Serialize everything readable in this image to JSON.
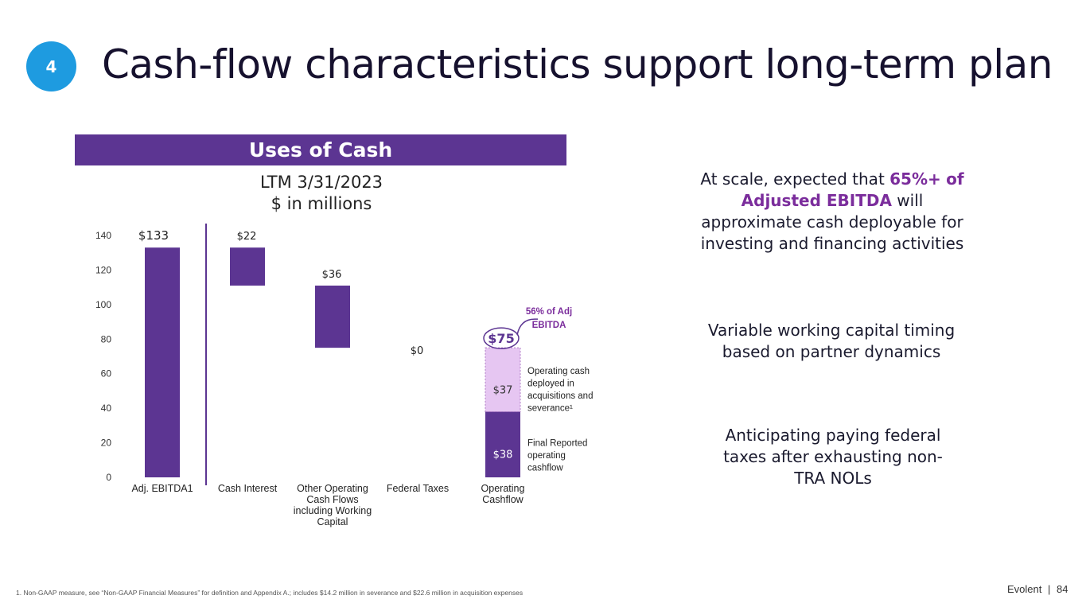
{
  "slide": {
    "badge_number": "4",
    "title": "Cash-flow characteristics support long-term plan",
    "uses_header": "Uses of Cash",
    "subtitle_line1": "LTM 3/31/2023",
    "subtitle_line2": "$ in millions",
    "footnote": "1.   Non-GAAP measure, see “Non-GAAP Financial Measures” for definition and Appendix A.; includes $14.2 million in severance and $22.6 million in acquisition expenses",
    "footer_brand": "Evolent",
    "footer_sep": "|",
    "footer_page": "84"
  },
  "right_panel": {
    "p1_pre": "At scale, expected that ",
    "p1_highlight1": "65%+",
    "p1_highlight2": "of Adjusted EBITDA",
    "p1_post": " will approximate cash deployable for investing and financing activities",
    "p2": "Variable working capital timing based on partner dynamics",
    "p3": "Anticipating paying federal taxes after exhausting non-TRA NOLs"
  },
  "colors": {
    "badge": "#1e9be0",
    "primary_purple": "#5c3592",
    "light_purple": "#e6c6f2",
    "accent_purple": "#7b2d9c"
  },
  "chart_data": {
    "type": "bar",
    "subtype": "waterfall",
    "ylim": [
      0,
      140
    ],
    "yticks": [
      "0",
      "20",
      "40",
      "60",
      "80",
      "100",
      "120",
      "140"
    ],
    "categories": [
      [
        "Adj. EBITDA1"
      ],
      [
        "Cash Interest"
      ],
      [
        "Other Operating",
        "Cash Flows",
        "including Working",
        "Capital"
      ],
      [
        "Federal Taxes"
      ],
      [
        "Operating",
        "Cashflow"
      ]
    ],
    "bars": [
      {
        "label": "$133",
        "start": 0,
        "end": 133
      },
      {
        "label": "$22",
        "start": 111,
        "end": 133
      },
      {
        "label": "$36",
        "start": 75,
        "end": 111
      },
      {
        "label": "$0",
        "start": 75,
        "end": 75
      },
      {
        "label": "",
        "start": 0,
        "end": 75
      }
    ],
    "stack": [
      {
        "label": "$38",
        "value": 38,
        "note": [
          "Final Reported",
          "operating",
          "cashflow"
        ]
      },
      {
        "label": "$37",
        "value": 37,
        "note": [
          "Operating cash",
          "deployed in",
          "acquisitions and",
          "severance¹"
        ]
      }
    ],
    "total_label": "$75",
    "callout": [
      "56% of Adj",
      "EBITDA"
    ]
  }
}
